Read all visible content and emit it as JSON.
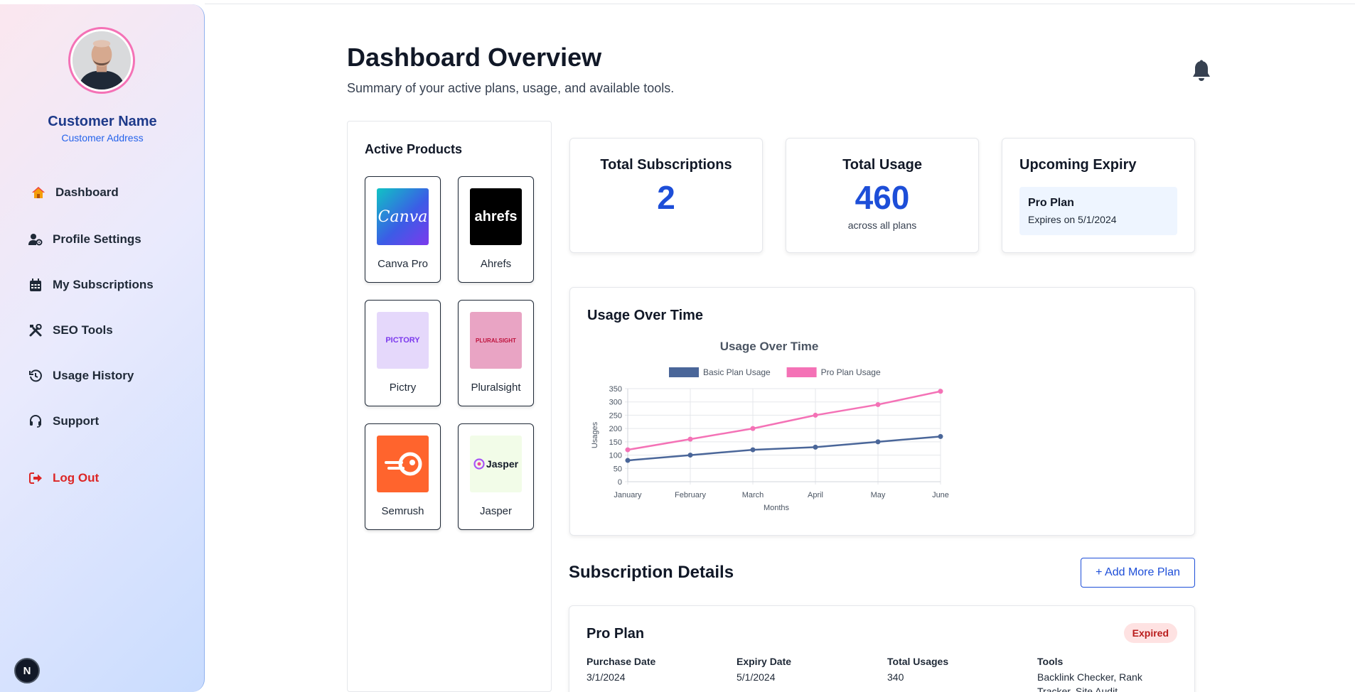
{
  "sidebar": {
    "customer_name": "Customer Name",
    "customer_address": "Customer Address",
    "items": [
      {
        "label": "Dashboard",
        "icon": "home-icon"
      },
      {
        "label": "Profile Settings",
        "icon": "user-gear-icon"
      },
      {
        "label": "My Subscriptions",
        "icon": "calendar-icon"
      },
      {
        "label": "SEO Tools",
        "icon": "tools-icon"
      },
      {
        "label": "Usage History",
        "icon": "history-icon"
      },
      {
        "label": "Support",
        "icon": "headset-icon"
      }
    ],
    "logout_label": "Log Out",
    "badge_letter": "N"
  },
  "header": {
    "title": "Dashboard Overview",
    "subtitle": "Summary of your active plans, usage, and available tools."
  },
  "active_products": {
    "title": "Active Products",
    "items": [
      {
        "name": "Canva Pro",
        "logo_text": "Canva"
      },
      {
        "name": "Ahrefs",
        "logo_text": "ahrefs"
      },
      {
        "name": "Pictry",
        "logo_text": "PICTORY"
      },
      {
        "name": "Pluralsight",
        "logo_text": "PLURALSIGHT"
      },
      {
        "name": "Semrush",
        "logo_text": ""
      },
      {
        "name": "Jasper",
        "logo_text": "Jasper"
      }
    ]
  },
  "stats": {
    "total_subscriptions": {
      "title": "Total Subscriptions",
      "value": "2"
    },
    "total_usage": {
      "title": "Total Usage",
      "value": "460",
      "sub": "across all plans"
    },
    "upcoming_expiry": {
      "title": "Upcoming Expiry",
      "plan": "Pro Plan",
      "text": "Expires on 5/1/2024"
    }
  },
  "usage_card": {
    "title": "Usage Over Time"
  },
  "chart_data": {
    "type": "line",
    "title": "Usage Over Time",
    "xlabel": "Months",
    "ylabel": "Usages",
    "categories": [
      "January",
      "February",
      "March",
      "April",
      "May",
      "June"
    ],
    "ylim": [
      0,
      350
    ],
    "yticks": [
      0,
      50,
      100,
      150,
      200,
      250,
      300,
      350
    ],
    "grid": true,
    "legend": "top-center",
    "series": [
      {
        "name": "Basic Plan Usage",
        "color": "#4a6699",
        "values": [
          80,
          100,
          120,
          130,
          150,
          170
        ]
      },
      {
        "name": "Pro Plan Usage",
        "color": "#f472b6",
        "values": [
          120,
          160,
          200,
          250,
          290,
          340
        ]
      }
    ]
  },
  "subscriptions": {
    "title": "Subscription Details",
    "add_label": "+ Add More Plan",
    "plans": [
      {
        "name": "Pro Plan",
        "status": "Expired",
        "purchase_label": "Purchase Date",
        "purchase": "3/1/2024",
        "expiry_label": "Expiry Date",
        "expiry": "5/1/2024",
        "usages_label": "Total Usages",
        "usages": "340",
        "tools_label": "Tools",
        "tools": "Backlink Checker, Rank Tracker, Site Audit"
      }
    ]
  },
  "colors": {
    "accent": "#1d4ed8",
    "logout": "#dc2626",
    "pro": "#f472b6",
    "basic": "#4a6699"
  }
}
